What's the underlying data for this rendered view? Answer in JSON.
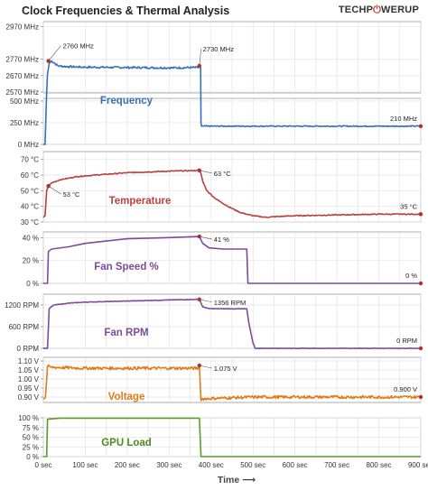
{
  "header": {
    "title": "Clock Frequencies & Thermal Analysis",
    "logo_left": "TECHP",
    "logo_mark": "⏻",
    "logo_right": "WERUP"
  },
  "chart_data": {
    "type": "line",
    "x_axis": {
      "label": "Time ⟶",
      "range": [
        0,
        900
      ],
      "ticks": [
        0,
        100,
        150,
        200,
        250,
        300,
        350,
        400,
        450,
        500,
        550,
        600,
        650,
        700,
        750,
        800,
        850,
        900
      ],
      "tick_labels_shown": [
        0,
        100,
        200,
        300,
        400,
        500,
        600,
        700,
        800,
        900
      ],
      "tick_suffix": " sec"
    },
    "panels": [
      {
        "name": "Frequency",
        "color": "#3a6fb5",
        "label_color": "#3a6fb5",
        "segments": [
          {
            "y_range": [
              2570,
              3000
            ],
            "ticks": [
              2570,
              2670,
              2770,
              2970
            ],
            "tick_labels": [
              "2570 MHz",
              "2670 MHz",
              "2770 MHz",
              "2970 MHz"
            ]
          },
          {
            "y_range": [
              0,
              520
            ],
            "ticks": [
              0,
              250,
              500
            ],
            "tick_labels": [
              "0 MHz",
              "250 MHz",
              "500 MHz"
            ]
          }
        ],
        "points": [
          [
            0,
            0
          ],
          [
            4,
            0
          ],
          [
            8,
            2570
          ],
          [
            10,
            2680
          ],
          [
            14,
            2745
          ],
          [
            20,
            2760
          ],
          [
            35,
            2730
          ],
          [
            60,
            2725
          ],
          [
            100,
            2722
          ],
          [
            200,
            2720
          ],
          [
            300,
            2718
          ],
          [
            370,
            2720
          ],
          [
            372,
            2730
          ],
          [
            375,
            2715
          ],
          [
            376,
            250
          ],
          [
            377,
            210
          ],
          [
            500,
            210
          ],
          [
            700,
            210
          ],
          [
            900,
            210
          ]
        ],
        "noise": 6,
        "annotations": [
          {
            "x": 12,
            "y": 2760,
            "label": "2760 MHz"
          },
          {
            "x": 372,
            "y": 2730,
            "label": "2730 MHz"
          },
          {
            "x": 900,
            "y": 210,
            "label": "210 MHz"
          }
        ]
      },
      {
        "name": "Temperature",
        "color": "#b94040",
        "label_color": "#c04040",
        "y_range": [
          30,
          75
        ],
        "ticks": [
          30,
          40,
          50,
          60,
          70
        ],
        "tick_labels": [
          "30 °C",
          "40 °C",
          "50 °C",
          "60 °C",
          "70 °C"
        ],
        "points": [
          [
            0,
            33
          ],
          [
            4,
            34
          ],
          [
            8,
            50
          ],
          [
            12,
            53
          ],
          [
            20,
            55
          ],
          [
            40,
            57
          ],
          [
            60,
            58
          ],
          [
            80,
            59
          ],
          [
            100,
            59.5
          ],
          [
            150,
            60.5
          ],
          [
            200,
            61.5
          ],
          [
            250,
            62
          ],
          [
            300,
            62.5
          ],
          [
            350,
            62.8
          ],
          [
            372,
            63
          ],
          [
            376,
            61
          ],
          [
            380,
            56
          ],
          [
            390,
            50
          ],
          [
            410,
            45
          ],
          [
            440,
            40
          ],
          [
            470,
            36
          ],
          [
            500,
            34
          ],
          [
            530,
            33
          ],
          [
            560,
            33.5
          ],
          [
            600,
            34
          ],
          [
            700,
            34.5
          ],
          [
            800,
            35
          ],
          [
            900,
            35
          ]
        ],
        "noise": 0.3,
        "annotations": [
          {
            "x": 12,
            "y": 53,
            "label": "53 °C"
          },
          {
            "x": 372,
            "y": 63,
            "label": "63 °C"
          },
          {
            "x": 900,
            "y": 35,
            "label": "35 °C"
          }
        ]
      },
      {
        "name": "Fan Speed %",
        "color": "#7b4c9c",
        "label_color": "#7b4c9c",
        "y_range": [
          0,
          45
        ],
        "ticks": [
          0,
          20,
          40
        ],
        "tick_labels": [
          "0 %",
          "20 %",
          "40 %"
        ],
        "points": [
          [
            0,
            0
          ],
          [
            10,
            0
          ],
          [
            12,
            28
          ],
          [
            20,
            30
          ],
          [
            60,
            32
          ],
          [
            100,
            35
          ],
          [
            150,
            37
          ],
          [
            200,
            39
          ],
          [
            300,
            40
          ],
          [
            372,
            41
          ],
          [
            380,
            35
          ],
          [
            395,
            31
          ],
          [
            430,
            30
          ],
          [
            485,
            30
          ],
          [
            488,
            0
          ],
          [
            900,
            0
          ]
        ],
        "noise": 0,
        "annotations": [
          {
            "x": 372,
            "y": 41,
            "label": "41 %"
          },
          {
            "x": 900,
            "y": 0,
            "label": "0 %"
          }
        ]
      },
      {
        "name": "Fan RPM",
        "color": "#7b4c9c",
        "label_color": "#7b4c9c",
        "y_range": [
          0,
          1500
        ],
        "ticks": [
          0,
          600,
          1200
        ],
        "tick_labels": [
          "0 RPM",
          "600 RPM",
          "1200 RPM"
        ],
        "points": [
          [
            0,
            0
          ],
          [
            10,
            0
          ],
          [
            14,
            1100
          ],
          [
            25,
            1200
          ],
          [
            60,
            1250
          ],
          [
            100,
            1280
          ],
          [
            200,
            1310
          ],
          [
            300,
            1340
          ],
          [
            372,
            1356
          ],
          [
            380,
            1150
          ],
          [
            395,
            1100
          ],
          [
            450,
            1095
          ],
          [
            485,
            1095
          ],
          [
            490,
            700
          ],
          [
            500,
            150
          ],
          [
            505,
            0
          ],
          [
            900,
            0
          ]
        ],
        "noise": 6,
        "annotations": [
          {
            "x": 372,
            "y": 1356,
            "label": "1356 RPM"
          },
          {
            "x": 900,
            "y": 0,
            "label": "0 RPM"
          }
        ]
      },
      {
        "name": "Voltage",
        "color": "#e07b17",
        "label_color": "#e07b17",
        "y_range": [
          0.87,
          1.12
        ],
        "ticks": [
          0.9,
          0.95,
          1.0,
          1.05,
          1.1
        ],
        "tick_labels": [
          "0.90 V",
          "0.95 V",
          "1.00 V",
          "1.05 V",
          "1.10 V"
        ],
        "points": [
          [
            0,
            0.89
          ],
          [
            5,
            0.9
          ],
          [
            10,
            1.07
          ],
          [
            20,
            1.065
          ],
          [
            100,
            1.06
          ],
          [
            200,
            1.06
          ],
          [
            300,
            1.06
          ],
          [
            370,
            1.06
          ],
          [
            372,
            1.075
          ],
          [
            376,
            0.88
          ],
          [
            378,
            0.89
          ],
          [
            430,
            0.895
          ],
          [
            500,
            0.9
          ],
          [
            600,
            0.9
          ],
          [
            900,
            0.9
          ]
        ],
        "noise": 0.008,
        "annotations": [
          {
            "x": 372,
            "y": 1.075,
            "label": "1.075 V"
          },
          {
            "x": 900,
            "y": 0.9,
            "label": "0.900 V"
          }
        ]
      },
      {
        "name": "GPU Load",
        "color": "#5b9a2c",
        "label_color": "#4d8a22",
        "y_range": [
          0,
          100
        ],
        "ticks": [
          0,
          25,
          50,
          75,
          100
        ],
        "tick_labels": [
          "0 %",
          "25 %",
          "50 %",
          "75 %",
          "100 %"
        ],
        "points": [
          [
            0,
            0
          ],
          [
            8,
            0
          ],
          [
            10,
            96
          ],
          [
            15,
            97
          ],
          [
            25,
            98
          ],
          [
            40,
            99
          ],
          [
            100,
            99
          ],
          [
            200,
            99
          ],
          [
            300,
            99
          ],
          [
            372,
            99
          ],
          [
            376,
            0
          ],
          [
            900,
            0
          ]
        ],
        "noise": 0,
        "annotations": []
      }
    ]
  }
}
